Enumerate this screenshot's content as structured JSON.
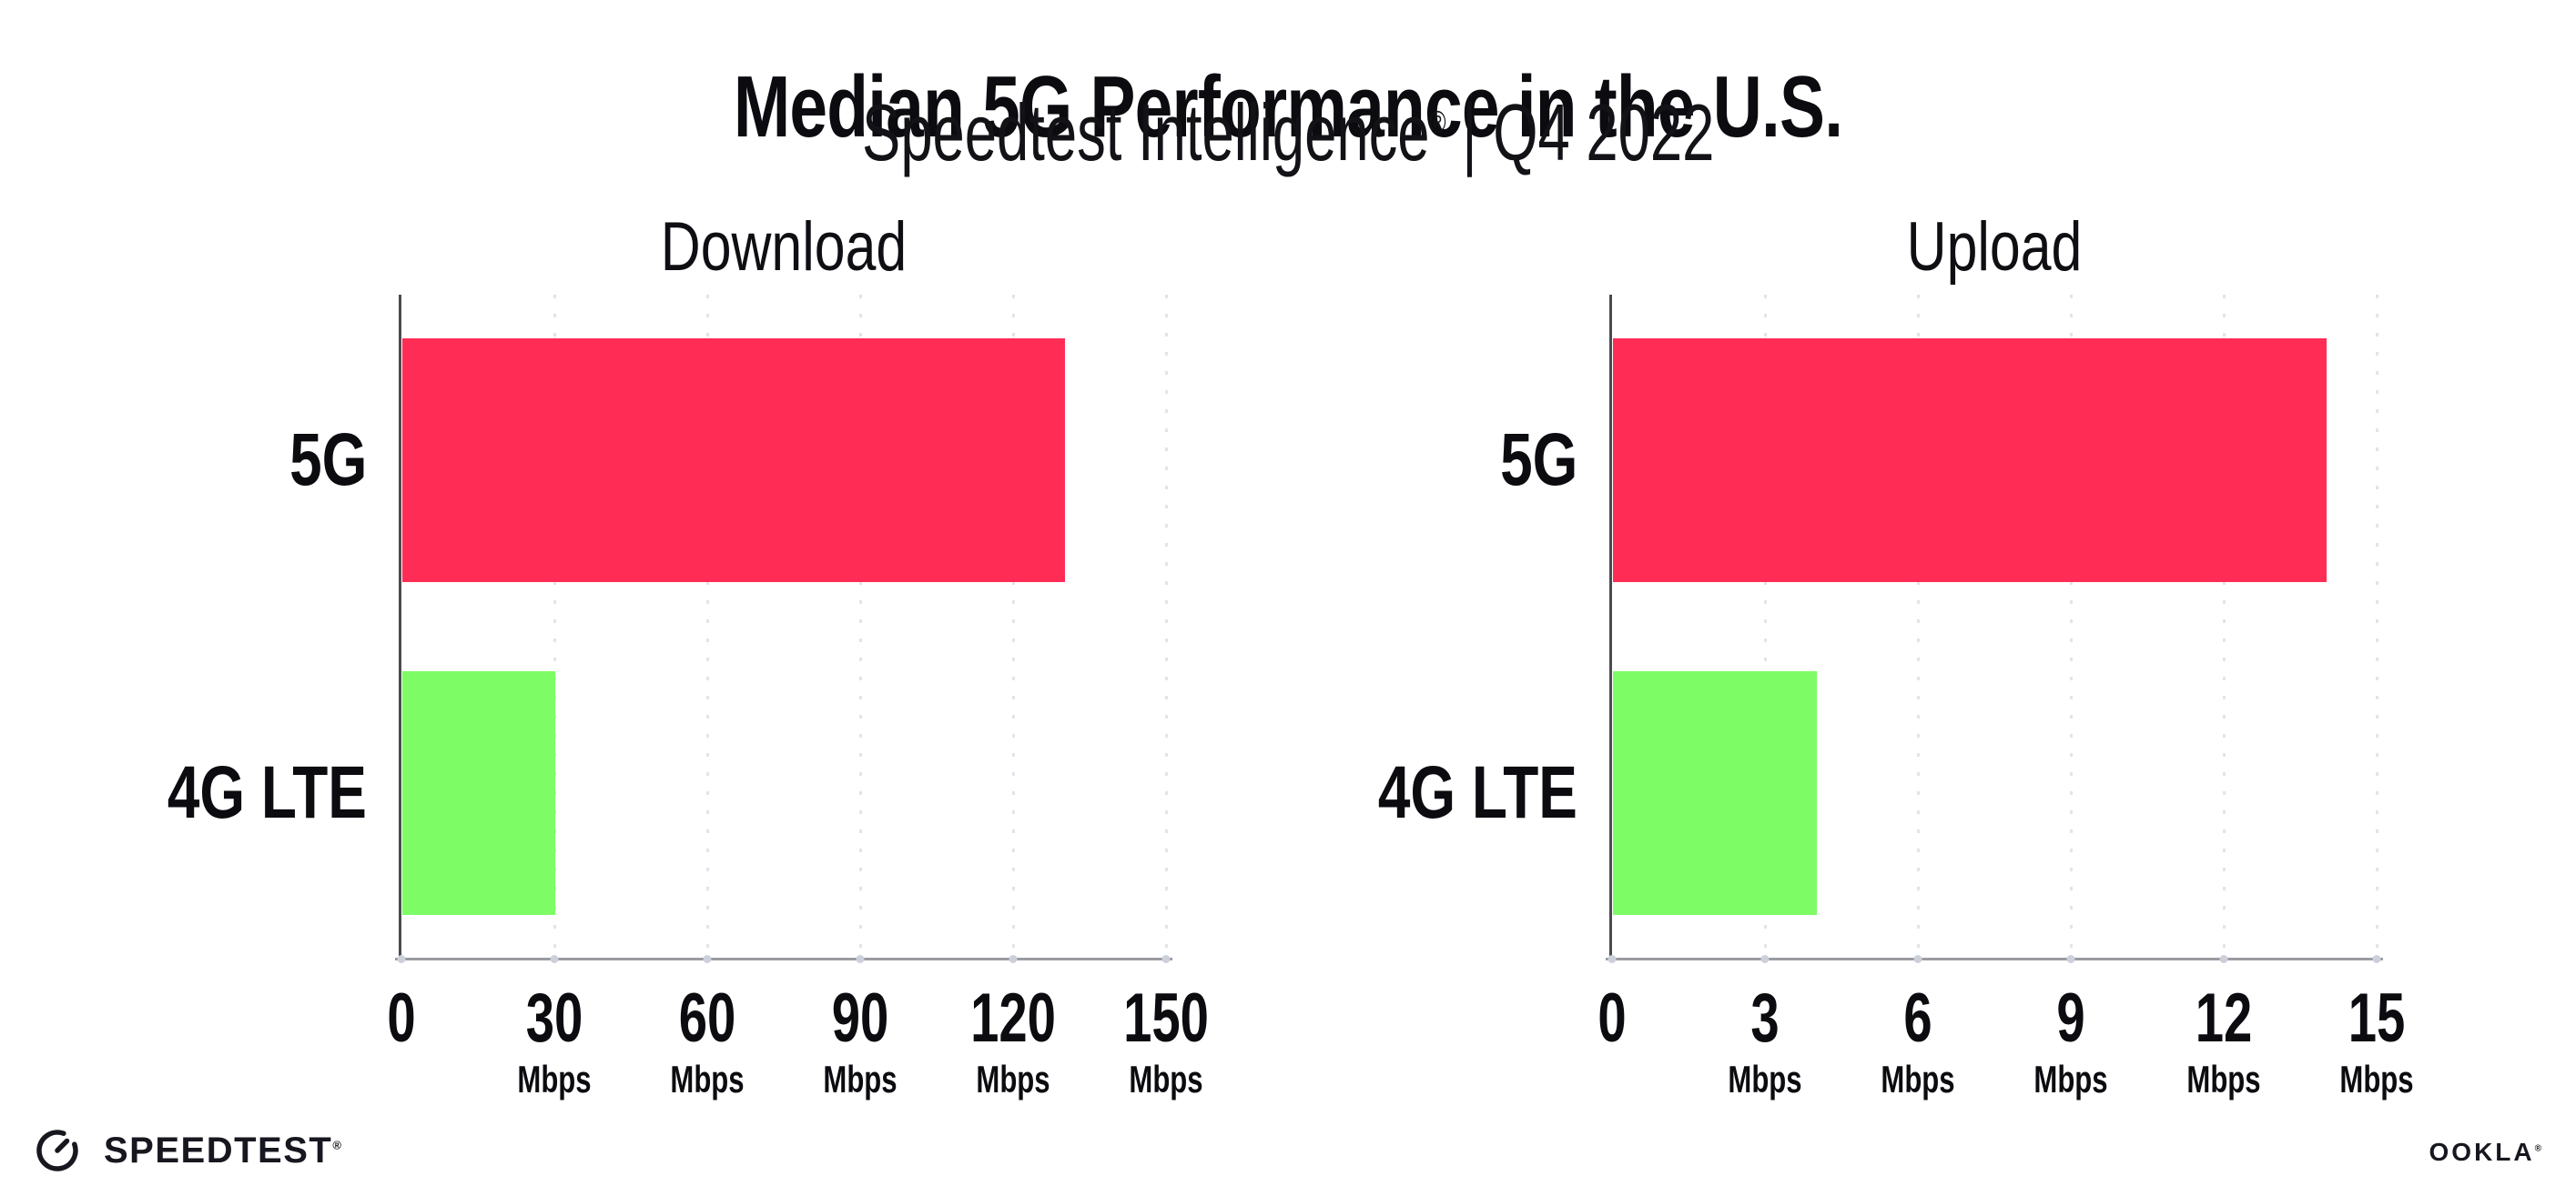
{
  "header": {
    "title": "Median 5G Performance in the U.S.",
    "subtitle_brand": "Speedtest Intelligence",
    "subtitle_mark": "®",
    "subtitle_rest": " | Q4 2022"
  },
  "charts": [
    {
      "title": "Download",
      "unit": "Mbps",
      "xlim": [
        0,
        150
      ],
      "ticks": [
        0,
        30,
        60,
        90,
        120,
        150
      ],
      "bars": [
        {
          "label": "5G",
          "value": 130,
          "color": "#ff2d55"
        },
        {
          "label": "4G LTE",
          "value": 30,
          "color": "#7dfc66"
        }
      ]
    },
    {
      "title": "Upload",
      "unit": "Mbps",
      "xlim": [
        0,
        15
      ],
      "ticks": [
        0,
        3,
        6,
        9,
        12,
        15
      ],
      "bars": [
        {
          "label": "5G",
          "value": 14,
          "color": "#ff2d55"
        },
        {
          "label": "4G LTE",
          "value": 4,
          "color": "#7dfc66"
        }
      ]
    }
  ],
  "footer": {
    "speedtest_label": "SPEEDTEST",
    "speedtest_mark": "®",
    "ookla_label": "OOKLA",
    "ookla_mark": "®"
  },
  "colors": {
    "bar_5g": "#ff2d55",
    "bar_4g_lte": "#7dfc66",
    "axis_line": "#9b9ba1",
    "y_spine": "#4a4a4f",
    "gridline": "#e2e3ec",
    "text": "#0b0b10"
  },
  "chart_data": [
    {
      "type": "bar",
      "orientation": "horizontal",
      "title": "Download",
      "categories": [
        "5G",
        "4G LTE"
      ],
      "values": [
        130,
        30
      ],
      "unit": "Mbps",
      "xlabel": "Mbps",
      "ylabel": "",
      "xlim": [
        0,
        150
      ],
      "xticks": [
        0,
        30,
        60,
        90,
        120,
        150
      ],
      "bar_colors": [
        "#ff2d55",
        "#7dfc66"
      ],
      "grid": "vertical dotted gridlines at each tick",
      "legend": "none"
    },
    {
      "type": "bar",
      "orientation": "horizontal",
      "title": "Upload",
      "categories": [
        "5G",
        "4G LTE"
      ],
      "values": [
        14,
        4
      ],
      "unit": "Mbps",
      "xlabel": "Mbps",
      "ylabel": "",
      "xlim": [
        0,
        15
      ],
      "xticks": [
        0,
        3,
        6,
        9,
        12,
        15
      ],
      "bar_colors": [
        "#ff2d55",
        "#7dfc66"
      ],
      "grid": "vertical dotted gridlines at each tick",
      "legend": "none"
    }
  ]
}
